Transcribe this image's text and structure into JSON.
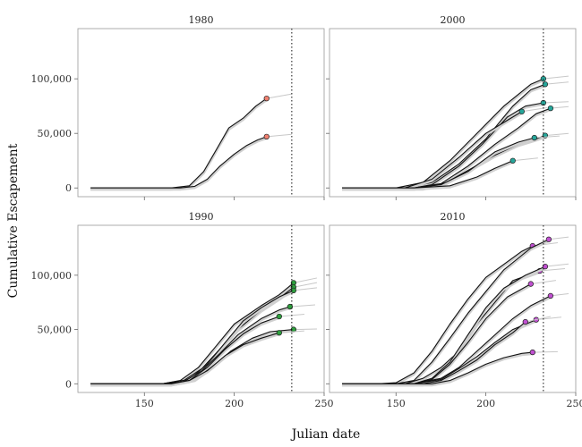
{
  "chart_data": {
    "type": "line",
    "xlabel": "Julian date",
    "ylabel": "Cumulative Escapement",
    "xlim": [
      113,
      250
    ],
    "ylim": [
      -8000,
      146000
    ],
    "xticks": [
      150,
      200,
      250
    ],
    "yticks": [
      0,
      50000,
      100000
    ],
    "ytick_labels": [
      "0",
      "50,000",
      "100,000"
    ],
    "reference_line_x": 232,
    "grid": false,
    "panels": [
      {
        "title": "1980",
        "series": [
          {
            "color": "#f08070",
            "points": [
              [
                120,
                0
              ],
              [
                165,
                0
              ],
              [
                175,
                2000
              ],
              [
                183,
                15000
              ],
              [
                190,
                35000
              ],
              [
                197,
                55000
              ],
              [
                205,
                64000
              ],
              [
                212,
                75000
              ],
              [
                218,
                82000
              ]
            ]
          },
          {
            "color": "#f08070",
            "points": [
              [
                120,
                0
              ],
              [
                170,
                0
              ],
              [
                178,
                1500
              ],
              [
                185,
                8000
              ],
              [
                192,
                20000
              ],
              [
                200,
                31000
              ],
              [
                207,
                39000
              ],
              [
                213,
                44000
              ],
              [
                218,
                47000
              ]
            ]
          }
        ]
      },
      {
        "title": "2000",
        "series": [
          {
            "color": "#26a69a",
            "points": [
              [
                120,
                0
              ],
              [
                150,
                0
              ],
              [
                165,
                5000
              ],
              [
                180,
                25000
              ],
              [
                195,
                50000
              ],
              [
                210,
                75000
              ],
              [
                225,
                95000
              ],
              [
                232,
                100000
              ]
            ]
          },
          {
            "color": "#26a69a",
            "points": [
              [
                120,
                0
              ],
              [
                155,
                0
              ],
              [
                170,
                5000
              ],
              [
                185,
                22000
              ],
              [
                200,
                45000
              ],
              [
                215,
                75000
              ],
              [
                225,
                90000
              ],
              [
                233,
                95000
              ]
            ]
          },
          {
            "color": "#26a69a",
            "points": [
              [
                120,
                0
              ],
              [
                160,
                0
              ],
              [
                170,
                3000
              ],
              [
                185,
                20000
              ],
              [
                198,
                40000
              ],
              [
                212,
                65000
              ],
              [
                222,
                75000
              ],
              [
                232,
                78000
              ]
            ]
          },
          {
            "color": "#26a69a",
            "points": [
              [
                120,
                0
              ],
              [
                155,
                0
              ],
              [
                170,
                8000
              ],
              [
                185,
                28000
              ],
              [
                200,
                50000
              ],
              [
                212,
                62000
              ],
              [
                220,
                70000
              ]
            ]
          },
          {
            "color": "#26a69a",
            "points": [
              [
                120,
                0
              ],
              [
                160,
                0
              ],
              [
                175,
                4000
              ],
              [
                190,
                20000
              ],
              [
                205,
                40000
              ],
              [
                218,
                55000
              ],
              [
                228,
                68000
              ],
              [
                236,
                73000
              ]
            ]
          },
          {
            "color": "#26a69a",
            "points": [
              [
                120,
                0
              ],
              [
                165,
                0
              ],
              [
                178,
                5000
              ],
              [
                192,
                18000
              ],
              [
                205,
                30000
              ],
              [
                218,
                40000
              ],
              [
                228,
                45000
              ],
              [
                233,
                48000
              ]
            ]
          },
          {
            "color": "#26a69a",
            "points": [
              [
                120,
                0
              ],
              [
                160,
                0
              ],
              [
                175,
                3000
              ],
              [
                190,
                15000
              ],
              [
                205,
                33000
              ],
              [
                218,
                42000
              ],
              [
                227,
                46000
              ]
            ]
          },
          {
            "color": "#26a69a",
            "points": [
              [
                120,
                0
              ],
              [
                160,
                0
              ],
              [
                180,
                2000
              ],
              [
                195,
                10000
              ],
              [
                205,
                18000
              ],
              [
                215,
                25000
              ]
            ]
          }
        ]
      },
      {
        "title": "1990",
        "series": [
          {
            "color": "#2e9e3e",
            "points": [
              [
                120,
                0
              ],
              [
                160,
                0
              ],
              [
                170,
                3000
              ],
              [
                180,
                15000
              ],
              [
                190,
                35000
              ],
              [
                200,
                55000
              ],
              [
                215,
                72000
              ],
              [
                225,
                82000
              ],
              [
                233,
                93000
              ]
            ]
          },
          {
            "color": "#2e9e3e",
            "points": [
              [
                120,
                0
              ],
              [
                160,
                0
              ],
              [
                172,
                3000
              ],
              [
                182,
                14000
              ],
              [
                192,
                32000
              ],
              [
                202,
                50000
              ],
              [
                215,
                68000
              ],
              [
                226,
                80000
              ],
              [
                233,
                89000
              ]
            ]
          },
          {
            "color": "#2e9e3e",
            "points": [
              [
                120,
                0
              ],
              [
                160,
                0
              ],
              [
                175,
                4000
              ],
              [
                185,
                18000
              ],
              [
                195,
                38000
              ],
              [
                205,
                58000
              ],
              [
                215,
                70000
              ],
              [
                225,
                80000
              ],
              [
                233,
                86000
              ]
            ]
          },
          {
            "color": "#2e9e3e",
            "points": [
              [
                120,
                0
              ],
              [
                160,
                0
              ],
              [
                172,
                2000
              ],
              [
                182,
                12000
              ],
              [
                192,
                28000
              ],
              [
                202,
                45000
              ],
              [
                215,
                60000
              ],
              [
                225,
                68000
              ],
              [
                231,
                71000
              ]
            ]
          },
          {
            "color": "#2e9e3e",
            "points": [
              [
                120,
                0
              ],
              [
                165,
                0
              ],
              [
                175,
                3000
              ],
              [
                185,
                15000
              ],
              [
                195,
                32000
              ],
              [
                205,
                46000
              ],
              [
                215,
                56000
              ],
              [
                225,
                62000
              ]
            ]
          },
          {
            "color": "#2e9e3e",
            "points": [
              [
                120,
                0
              ],
              [
                165,
                0
              ],
              [
                178,
                4000
              ],
              [
                188,
                16000
              ],
              [
                198,
                30000
              ],
              [
                210,
                42000
              ],
              [
                220,
                48000
              ],
              [
                233,
                50000
              ]
            ]
          },
          {
            "color": "#2e9e3e",
            "points": [
              [
                120,
                0
              ],
              [
                165,
                0
              ],
              [
                175,
                3000
              ],
              [
                185,
                12000
              ],
              [
                195,
                26000
              ],
              [
                205,
                36000
              ],
              [
                215,
                42000
              ],
              [
                225,
                47000
              ]
            ]
          }
        ]
      },
      {
        "title": "2010",
        "series": [
          {
            "color": "#c050d0",
            "points": [
              [
                120,
                0
              ],
              [
                140,
                0
              ],
              [
                150,
                1000
              ],
              [
                160,
                10000
              ],
              [
                170,
                30000
              ],
              [
                180,
                55000
              ],
              [
                190,
                78000
              ],
              [
                200,
                98000
              ],
              [
                210,
                110000
              ],
              [
                220,
                122000
              ],
              [
                226,
                127000
              ]
            ]
          },
          {
            "color": "#c050d0",
            "points": [
              [
                120,
                0
              ],
              [
                150,
                0
              ],
              [
                160,
                3000
              ],
              [
                170,
                20000
              ],
              [
                180,
                42000
              ],
              [
                190,
                65000
              ],
              [
                200,
                85000
              ],
              [
                210,
                105000
              ],
              [
                225,
                125000
              ],
              [
                235,
                133000
              ]
            ]
          },
          {
            "color": "#c050d0",
            "points": [
              [
                120,
                0
              ],
              [
                155,
                0
              ],
              [
                165,
                5000
              ],
              [
                175,
                15000
              ],
              [
                185,
                30000
              ],
              [
                195,
                55000
              ],
              [
                205,
                75000
              ],
              [
                215,
                95000
              ],
              [
                230,
                104000
              ]
            ]
          },
          {
            "color": "#c050d0",
            "points": [
              [
                120,
                0
              ],
              [
                160,
                0
              ],
              [
                170,
                5000
              ],
              [
                180,
                20000
              ],
              [
                190,
                45000
              ],
              [
                200,
                70000
              ],
              [
                210,
                88000
              ],
              [
                222,
                100000
              ],
              [
                233,
                108000
              ]
            ]
          },
          {
            "color": "#c050d0",
            "points": [
              [
                120,
                0
              ],
              [
                160,
                0
              ],
              [
                170,
                4000
              ],
              [
                180,
                18000
              ],
              [
                190,
                38000
              ],
              [
                200,
                60000
              ],
              [
                212,
                80000
              ],
              [
                225,
                92000
              ]
            ]
          },
          {
            "color": "#c050d0",
            "points": [
              [
                120,
                0
              ],
              [
                160,
                0
              ],
              [
                175,
                5000
              ],
              [
                185,
                15000
              ],
              [
                195,
                30000
              ],
              [
                205,
                45000
              ],
              [
                215,
                60000
              ],
              [
                225,
                72000
              ],
              [
                236,
                81000
              ]
            ]
          },
          {
            "color": "#c050d0",
            "points": [
              [
                120,
                0
              ],
              [
                160,
                0
              ],
              [
                175,
                4000
              ],
              [
                185,
                14000
              ],
              [
                195,
                25000
              ],
              [
                205,
                38000
              ],
              [
                215,
                50000
              ],
              [
                228,
                59000
              ]
            ]
          },
          {
            "color": "#c050d0",
            "points": [
              [
                120,
                0
              ],
              [
                165,
                0
              ],
              [
                175,
                3000
              ],
              [
                185,
                12000
              ],
              [
                195,
                22000
              ],
              [
                205,
                36000
              ],
              [
                215,
                47000
              ],
              [
                222,
                57000
              ]
            ]
          },
          {
            "color": "#c050d0",
            "points": [
              [
                120,
                0
              ],
              [
                170,
                0
              ],
              [
                180,
                3000
              ],
              [
                190,
                10000
              ],
              [
                200,
                18000
              ],
              [
                210,
                24000
              ],
              [
                220,
                28000
              ],
              [
                226,
                29000
              ]
            ]
          }
        ]
      }
    ]
  }
}
